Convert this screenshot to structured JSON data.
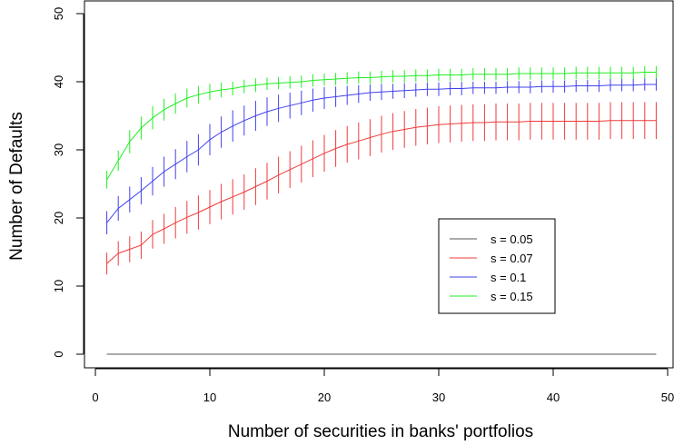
{
  "chart_data": {
    "type": "line",
    "title": "",
    "xlabel": "Number of securities in banks' portfolios",
    "ylabel": "Number of Defaults",
    "xlim": [
      0,
      50
    ],
    "ylim": [
      0,
      50
    ],
    "x_ticks": [
      "0",
      "10",
      "20",
      "30",
      "40",
      "50"
    ],
    "y_ticks": [
      "0",
      "10",
      "20",
      "30",
      "40",
      "50"
    ],
    "grid": false,
    "legend_position": "right",
    "x": [
      1,
      2,
      3,
      4,
      5,
      6,
      7,
      8,
      9,
      10,
      11,
      12,
      13,
      14,
      15,
      16,
      17,
      18,
      19,
      20,
      21,
      22,
      23,
      24,
      25,
      26,
      27,
      28,
      29,
      30,
      31,
      32,
      33,
      34,
      35,
      36,
      37,
      38,
      39,
      40,
      41,
      42,
      43,
      44,
      45,
      46,
      47,
      48,
      49
    ],
    "series": [
      {
        "name": "s = 0.05",
        "color": "#555555",
        "values": [
          0,
          0,
          0,
          0,
          0,
          0,
          0,
          0,
          0,
          0,
          0,
          0,
          0,
          0,
          0,
          0,
          0,
          0,
          0,
          0,
          0,
          0,
          0,
          0,
          0,
          0,
          0,
          0,
          0,
          0,
          0,
          0,
          0,
          0,
          0,
          0,
          0,
          0,
          0,
          0,
          0,
          0,
          0,
          0,
          0,
          0,
          0,
          0,
          0
        ],
        "error": [
          0,
          0,
          0,
          0,
          0,
          0,
          0,
          0,
          0,
          0,
          0,
          0,
          0,
          0,
          0,
          0,
          0,
          0,
          0,
          0,
          0,
          0,
          0,
          0,
          0,
          0,
          0,
          0,
          0,
          0,
          0,
          0,
          0,
          0,
          0,
          0,
          0,
          0,
          0,
          0,
          0,
          0,
          0,
          0,
          0,
          0,
          0,
          0,
          0
        ]
      },
      {
        "name": "s = 0.07",
        "color": "#ef3b3b",
        "values": [
          13.3,
          14.8,
          15.4,
          16.0,
          17.6,
          18.4,
          19.3,
          20.1,
          20.8,
          21.6,
          22.4,
          23.1,
          23.8,
          24.6,
          25.4,
          26.3,
          27.1,
          27.9,
          28.7,
          29.5,
          30.2,
          30.8,
          31.3,
          31.8,
          32.3,
          32.7,
          33.0,
          33.3,
          33.5,
          33.7,
          33.8,
          33.9,
          34.0,
          34.0,
          34.1,
          34.1,
          34.1,
          34.2,
          34.2,
          34.2,
          34.2,
          34.2,
          34.2,
          34.2,
          34.3,
          34.3,
          34.3,
          34.3,
          34.3
        ],
        "error": [
          1.6,
          1.8,
          1.9,
          2.0,
          2.1,
          2.2,
          2.3,
          2.4,
          2.5,
          2.5,
          2.6,
          2.6,
          2.6,
          2.7,
          2.7,
          2.7,
          2.7,
          2.7,
          2.7,
          2.7,
          2.7,
          2.7,
          2.7,
          2.7,
          2.7,
          2.7,
          2.7,
          2.7,
          2.7,
          2.7,
          2.7,
          2.7,
          2.7,
          2.7,
          2.7,
          2.7,
          2.7,
          2.7,
          2.7,
          2.7,
          2.7,
          2.7,
          2.7,
          2.7,
          2.7,
          2.7,
          2.7,
          2.7,
          2.7
        ]
      },
      {
        "name": "s = 0.1",
        "color": "#4040ee",
        "values": [
          19.3,
          21.4,
          22.7,
          24.0,
          25.4,
          26.8,
          27.9,
          29.0,
          30.0,
          31.5,
          32.6,
          33.5,
          34.3,
          35.0,
          35.6,
          36.1,
          36.5,
          36.9,
          37.3,
          37.6,
          37.8,
          38.0,
          38.2,
          38.4,
          38.5,
          38.6,
          38.7,
          38.8,
          38.9,
          38.9,
          39.0,
          39.0,
          39.1,
          39.1,
          39.1,
          39.2,
          39.2,
          39.2,
          39.3,
          39.3,
          39.3,
          39.4,
          39.4,
          39.4,
          39.5,
          39.5,
          39.5,
          39.6,
          39.6
        ],
        "error": [
          1.7,
          1.8,
          1.9,
          2.0,
          2.1,
          2.2,
          2.2,
          2.3,
          2.3,
          2.3,
          2.3,
          2.3,
          2.2,
          2.2,
          2.1,
          2.0,
          1.9,
          1.8,
          1.7,
          1.6,
          1.5,
          1.4,
          1.3,
          1.2,
          1.2,
          1.1,
          1.1,
          1.0,
          1.0,
          1.0,
          1.0,
          1.0,
          0.9,
          0.9,
          0.9,
          0.9,
          0.9,
          0.9,
          0.9,
          0.9,
          0.9,
          0.9,
          0.9,
          0.9,
          0.9,
          0.9,
          0.9,
          0.9,
          0.9
        ]
      },
      {
        "name": "s = 0.15",
        "color": "#22ee22",
        "values": [
          25.6,
          28.4,
          31.2,
          33.2,
          34.7,
          35.9,
          36.8,
          37.6,
          38.1,
          38.5,
          38.8,
          39.0,
          39.3,
          39.5,
          39.7,
          39.8,
          39.9,
          40.0,
          40.2,
          40.3,
          40.4,
          40.5,
          40.6,
          40.6,
          40.7,
          40.8,
          40.8,
          40.9,
          40.9,
          41.0,
          41.0,
          41.0,
          41.1,
          41.1,
          41.1,
          41.1,
          41.2,
          41.2,
          41.2,
          41.2,
          41.2,
          41.3,
          41.3,
          41.3,
          41.3,
          41.3,
          41.3,
          41.4,
          41.4
        ],
        "error": [
          1.3,
          1.5,
          1.7,
          1.7,
          1.7,
          1.6,
          1.5,
          1.4,
          1.3,
          1.2,
          1.1,
          1.0,
          1.0,
          1.0,
          0.9,
          0.9,
          0.9,
          0.9,
          0.9,
          0.9,
          0.9,
          0.9,
          0.9,
          0.9,
          0.9,
          0.9,
          0.9,
          0.9,
          0.9,
          0.9,
          0.9,
          0.9,
          0.9,
          0.9,
          0.9,
          0.9,
          0.9,
          0.9,
          0.9,
          0.9,
          0.9,
          0.9,
          0.9,
          0.9,
          0.9,
          0.9,
          0.9,
          0.9,
          0.9
        ]
      }
    ]
  }
}
